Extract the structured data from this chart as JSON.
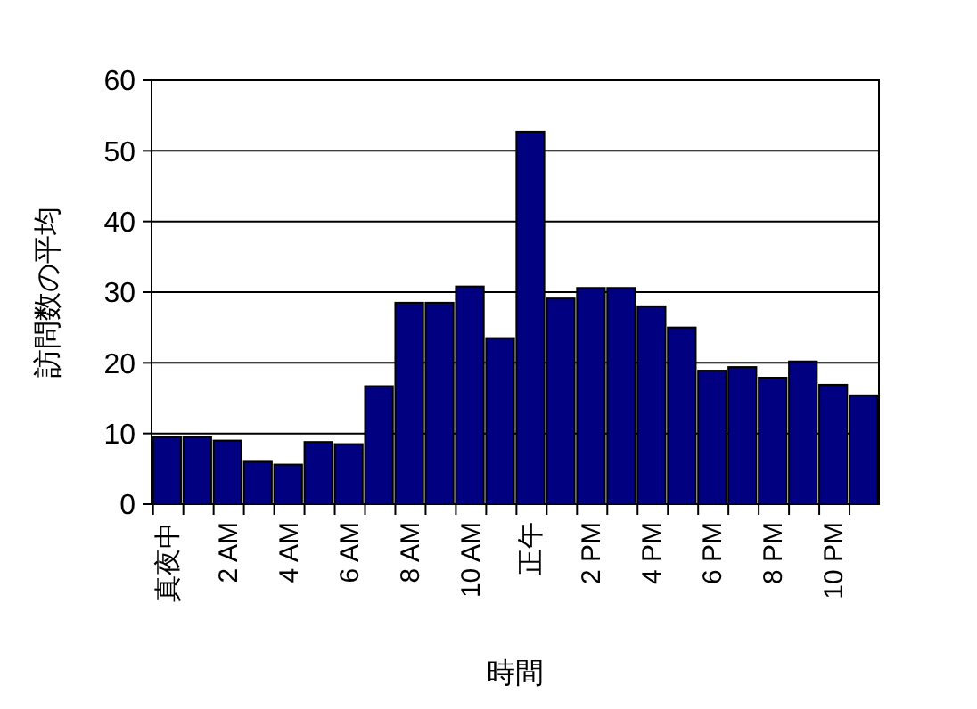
{
  "chart_data": {
    "type": "bar",
    "xlabel": "時間",
    "ylabel": "訪問数の平均",
    "categories": [
      "真夜中",
      null,
      "2 AM",
      null,
      "4 AM",
      null,
      "6 AM",
      null,
      "8 AM",
      null,
      "10 AM",
      null,
      "正午",
      null,
      "2 PM",
      null,
      "4 PM",
      null,
      "6 PM",
      null,
      "8 PM",
      null,
      "10 PM",
      null
    ],
    "values": [
      9.5,
      9.5,
      9.0,
      6.0,
      5.6,
      8.8,
      8.5,
      16.7,
      28.5,
      28.5,
      30.8,
      23.5,
      52.7,
      29.1,
      30.6,
      30.6,
      28.0,
      25.0,
      18.9,
      19.4,
      17.9,
      20.2,
      16.9,
      15.4
    ],
    "color": "#000080",
    "ylim": [
      0,
      60
    ],
    "yticks": [
      0,
      10,
      20,
      30,
      40,
      50,
      60
    ],
    "grid": "y"
  }
}
